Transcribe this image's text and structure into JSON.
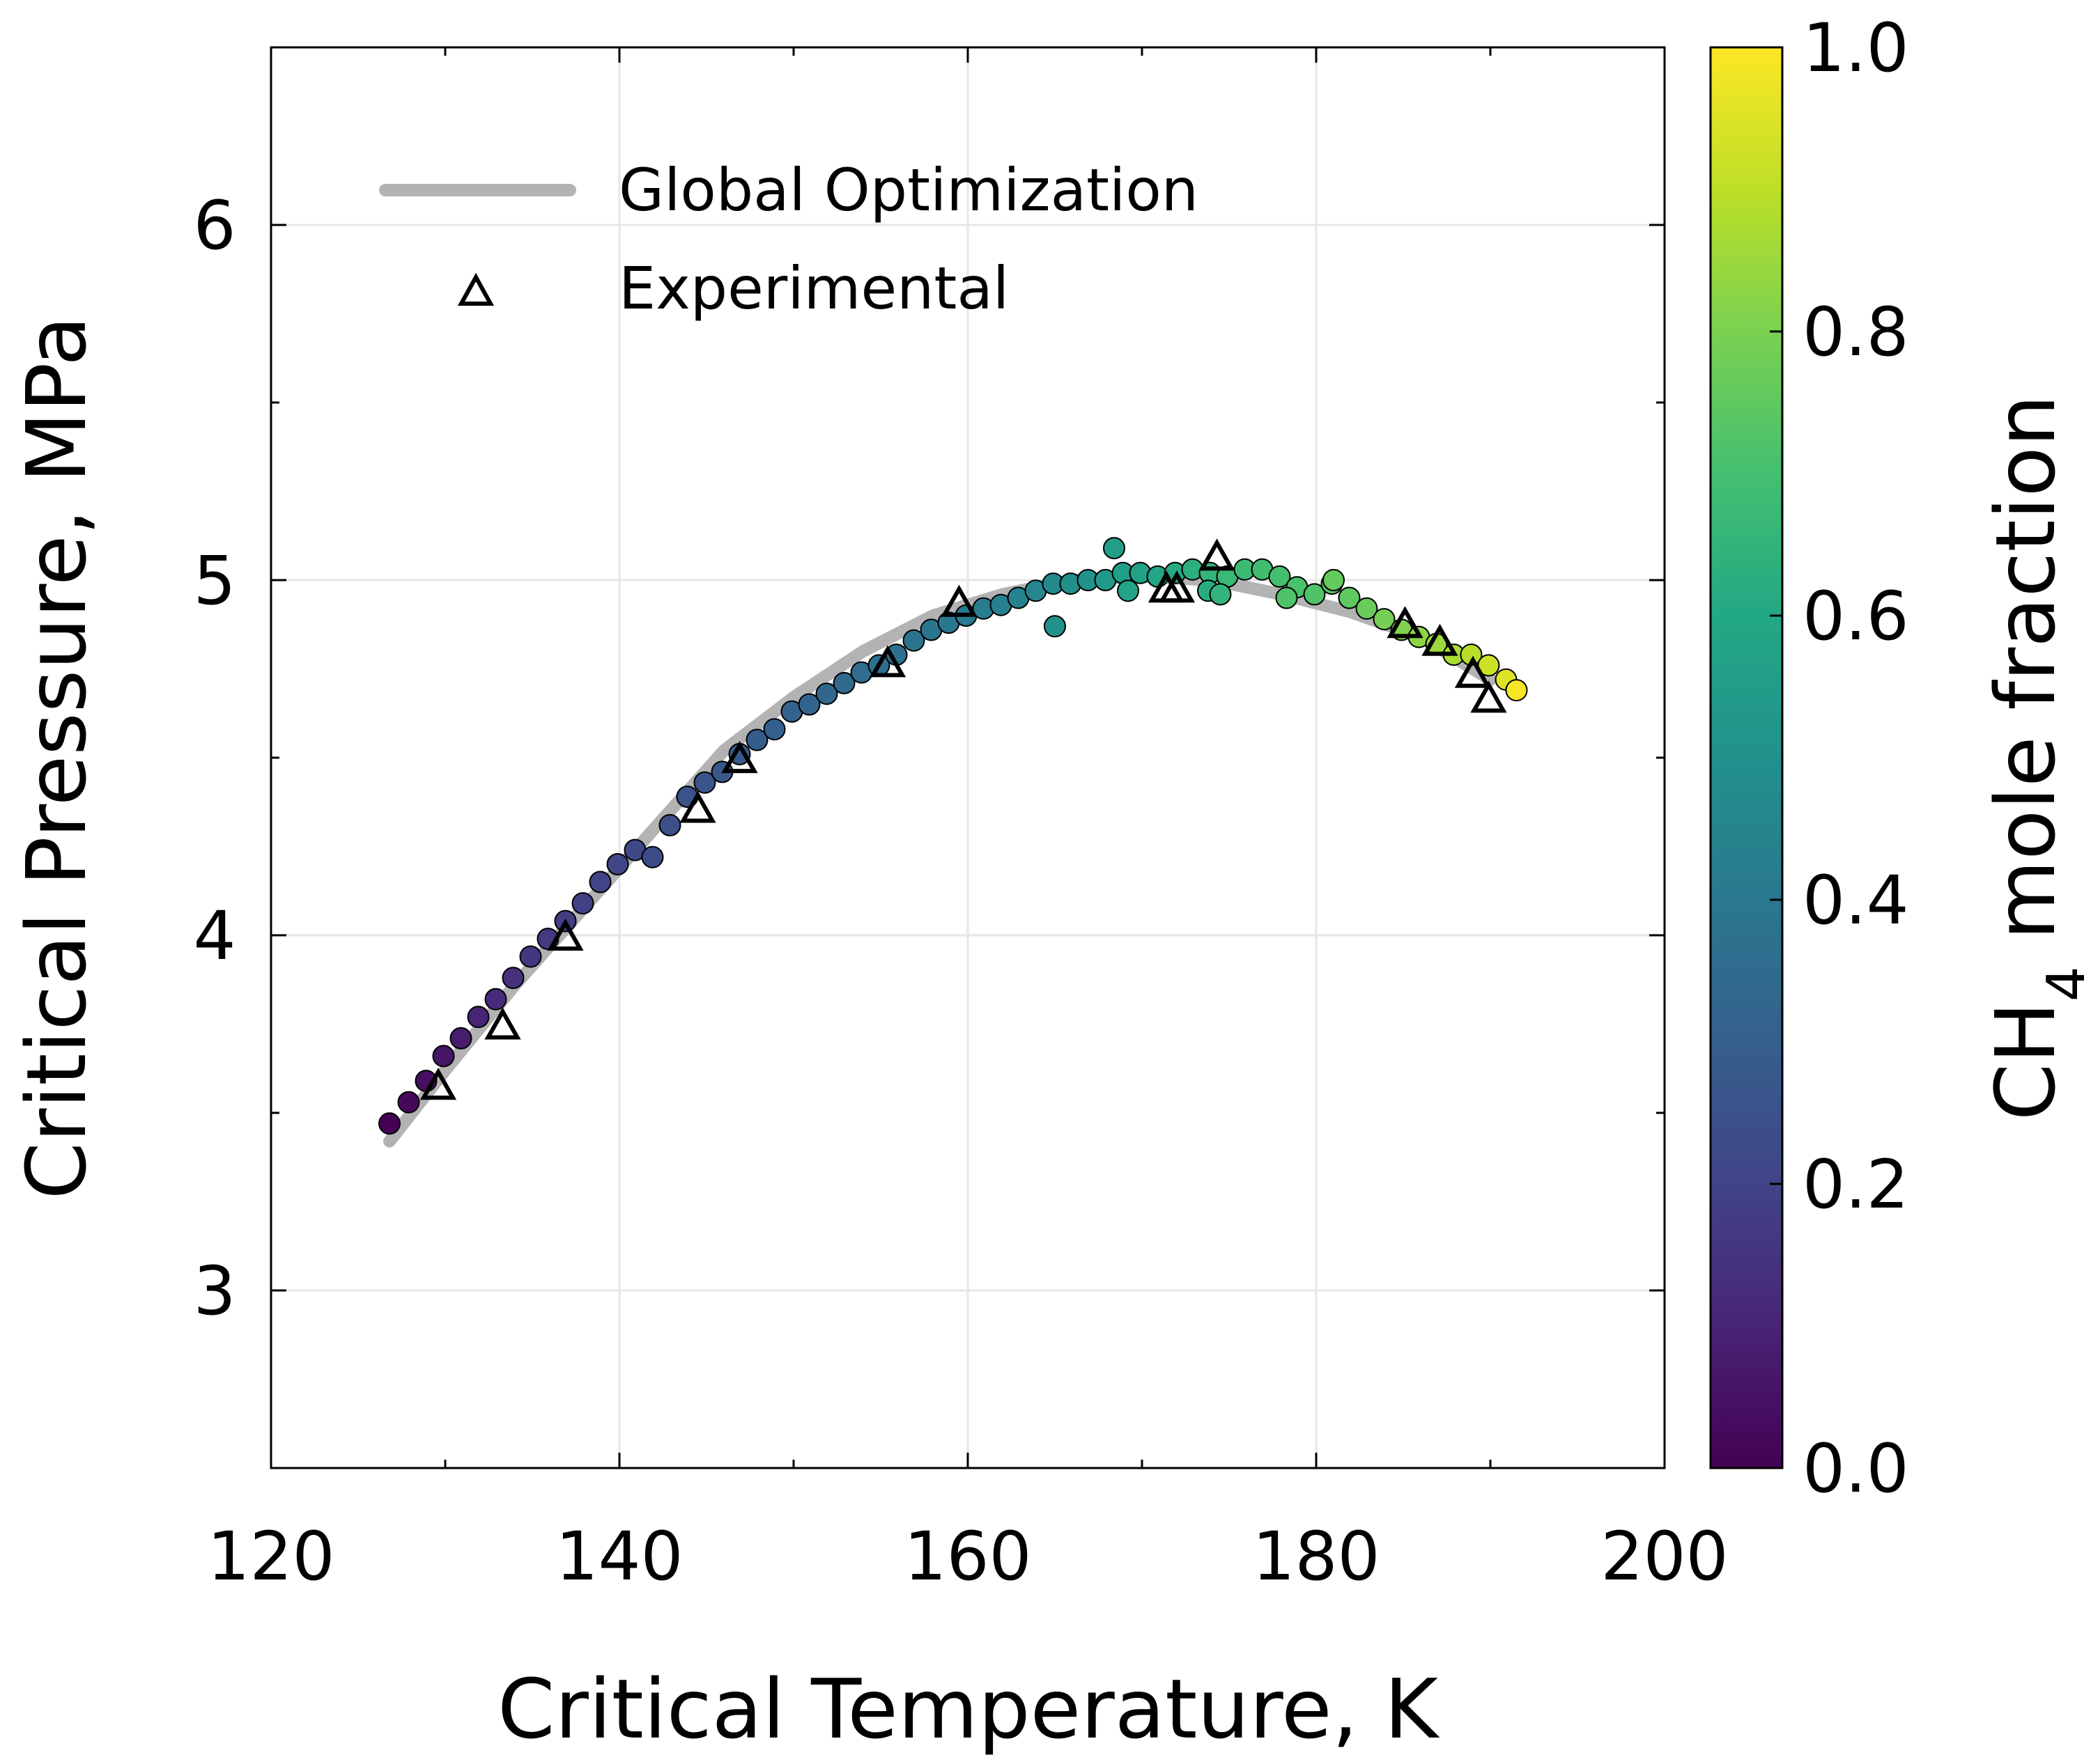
{
  "chart_data": {
    "type": "scatter",
    "xlabel": "Critical Temperature, K",
    "ylabel": "Critical Pressure, MPa",
    "xlim": [
      120,
      200
    ],
    "ylim": [
      2.5,
      6.5
    ],
    "x_ticks": [
      "120",
      "140",
      "160",
      "180",
      "200"
    ],
    "y_ticks": [
      "3",
      "4",
      "5",
      "6"
    ],
    "grid": true,
    "legend": {
      "placement": "top-left",
      "entries": [
        "Global Optimization",
        "Experimental"
      ]
    },
    "colorbar": {
      "label_main": "CH",
      "label_sub": "4",
      "label_rest": " mole fraction",
      "range": [
        0,
        1
      ],
      "ticks": [
        "0.0",
        "0.2",
        "0.4",
        "0.6",
        "0.8",
        "1.0"
      ],
      "colormap": "viridis"
    },
    "global_optimization": {
      "name": "Global Optimization",
      "color": "#b3b3b3",
      "x": [
        126.8,
        130,
        134,
        138,
        142,
        146,
        150,
        154,
        158,
        162,
        166,
        170,
        174,
        178,
        182,
        186,
        190
      ],
      "y": [
        3.42,
        3.62,
        3.86,
        4.08,
        4.3,
        4.52,
        4.67,
        4.8,
        4.9,
        4.96,
        5.0,
        5.01,
        5.0,
        4.96,
        4.91,
        4.84,
        4.72
      ]
    },
    "model_points": {
      "x": [
        126.8,
        127.9,
        128.9,
        129.9,
        130.9,
        131.9,
        132.9,
        133.9,
        134.9,
        135.9,
        136.9,
        137.9,
        138.9,
        139.9,
        140.9,
        141.9,
        142.9,
        143.9,
        144.9,
        145.9,
        146.9,
        147.9,
        148.9,
        149.9,
        150.9,
        151.9,
        152.9,
        153.9,
        154.9,
        155.9,
        156.9,
        157.9,
        158.9,
        159.9,
        160.9,
        161.9,
        162.9,
        163.9,
        164.9,
        165.9,
        166.9,
        167.9,
        168.9,
        169.9,
        170.9,
        171.9,
        172.9,
        173.9,
        174.9,
        175.9,
        176.9,
        177.9,
        178.9,
        179.9,
        180.9,
        181.9,
        182.9,
        183.9,
        184.9,
        185.9,
        186.9,
        187.9,
        188.9,
        189.9,
        190.9,
        191.5,
        168.4,
        165.0,
        169.2,
        173.8,
        174.5,
        178.3,
        181.0
      ],
      "y": [
        3.47,
        3.53,
        3.59,
        3.66,
        3.71,
        3.77,
        3.82,
        3.88,
        3.94,
        3.99,
        4.04,
        4.09,
        4.15,
        4.2,
        4.24,
        4.22,
        4.31,
        4.39,
        4.43,
        4.46,
        4.51,
        4.55,
        4.58,
        4.63,
        4.65,
        4.68,
        4.71,
        4.74,
        4.76,
        4.79,
        4.83,
        4.86,
        4.88,
        4.9,
        4.92,
        4.93,
        4.95,
        4.97,
        4.99,
        4.99,
        5.0,
        5.0,
        5.02,
        5.02,
        5.01,
        5.02,
        5.03,
        5.02,
        5.01,
        5.03,
        5.03,
        5.01,
        4.98,
        4.96,
        4.99,
        4.95,
        4.92,
        4.89,
        4.86,
        4.84,
        4.82,
        4.79,
        4.79,
        4.76,
        4.72,
        4.69,
        5.09,
        4.87,
        4.97,
        4.97,
        4.96,
        4.95,
        5.0
      ],
      "c": [
        0.0,
        0.02,
        0.04,
        0.06,
        0.08,
        0.1,
        0.12,
        0.14,
        0.16,
        0.17,
        0.18,
        0.19,
        0.2,
        0.21,
        0.22,
        0.23,
        0.24,
        0.25,
        0.26,
        0.27,
        0.28,
        0.29,
        0.3,
        0.31,
        0.32,
        0.33,
        0.34,
        0.35,
        0.36,
        0.37,
        0.38,
        0.39,
        0.4,
        0.41,
        0.42,
        0.43,
        0.44,
        0.45,
        0.47,
        0.49,
        0.51,
        0.53,
        0.55,
        0.57,
        0.59,
        0.61,
        0.63,
        0.65,
        0.67,
        0.68,
        0.69,
        0.7,
        0.71,
        0.72,
        0.73,
        0.75,
        0.77,
        0.79,
        0.81,
        0.83,
        0.85,
        0.87,
        0.89,
        0.92,
        0.95,
        0.99,
        0.55,
        0.5,
        0.58,
        0.62,
        0.65,
        0.72,
        0.76
      ]
    },
    "experimental": {
      "name": "Experimental",
      "x": [
        129.6,
        133.3,
        136.9,
        144.5,
        146.9,
        155.4,
        159.5,
        171.4,
        172.0,
        174.3,
        185.1,
        187.1,
        189.0,
        189.9
      ],
      "y": [
        3.57,
        3.74,
        3.99,
        4.35,
        4.49,
        4.76,
        4.93,
        4.97,
        4.97,
        5.06,
        4.87,
        4.82,
        4.73,
        4.66
      ]
    }
  }
}
